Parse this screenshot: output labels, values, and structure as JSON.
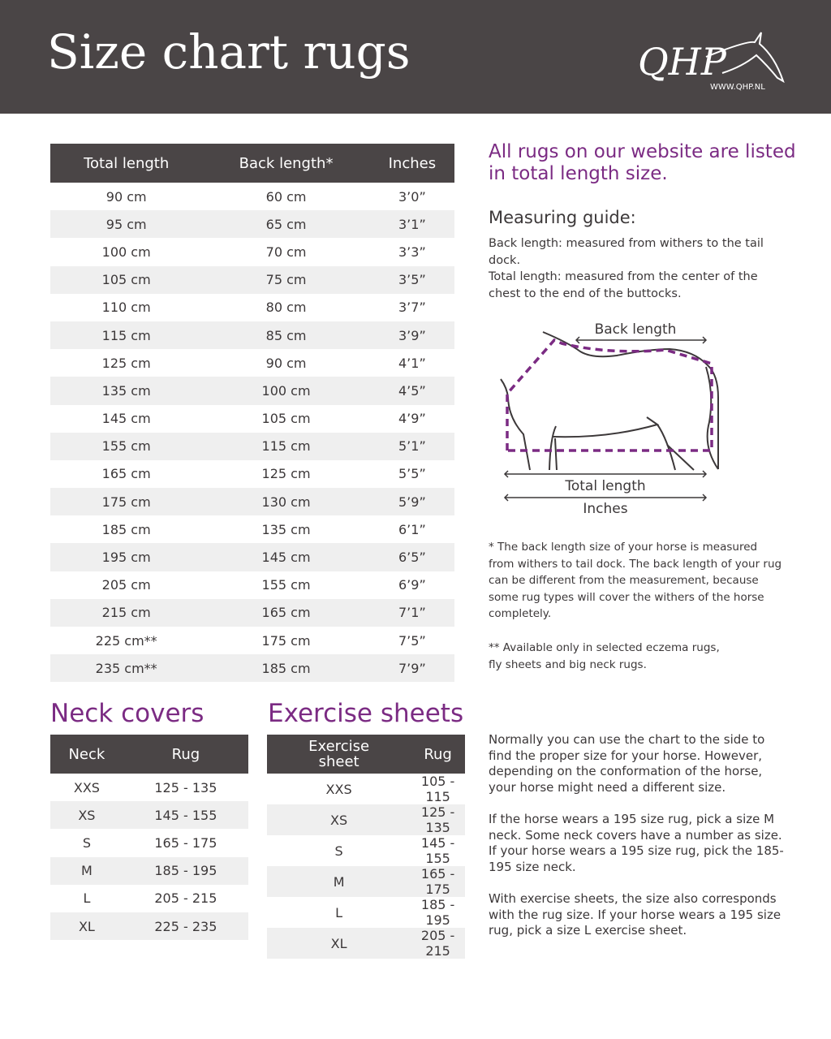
{
  "header": {
    "title": "Size chart rugs",
    "logo_text": "QHP",
    "logo_url": "WWW.QHP.NL"
  },
  "main_table": {
    "headers": [
      "Total length",
      "Back length*",
      "Inches"
    ],
    "rows": [
      [
        "90 cm",
        "60 cm",
        "3’0”"
      ],
      [
        "95 cm",
        "65 cm",
        "3’1”"
      ],
      [
        "100 cm",
        "70 cm",
        "3’3”"
      ],
      [
        "105 cm",
        "75 cm",
        "3’5”"
      ],
      [
        "110 cm",
        "80 cm",
        "3’7”"
      ],
      [
        "115 cm",
        "85 cm",
        "3’9”"
      ],
      [
        "125 cm",
        "90 cm",
        "4’1”"
      ],
      [
        "135 cm",
        "100 cm",
        "4’5”"
      ],
      [
        "145 cm",
        "105 cm",
        "4’9”"
      ],
      [
        "155 cm",
        "115 cm",
        "5’1”"
      ],
      [
        "165 cm",
        "125 cm",
        "5’5”"
      ],
      [
        "175 cm",
        "130 cm",
        "5’9”"
      ],
      [
        "185 cm",
        "135 cm",
        "6’1”"
      ],
      [
        "195 cm",
        "145 cm",
        "6’5”"
      ],
      [
        "205 cm",
        "155 cm",
        "6’9”"
      ],
      [
        "215 cm",
        "165 cm",
        "7’1”"
      ],
      [
        "225 cm**",
        "175 cm",
        "7’5”"
      ],
      [
        "235 cm**",
        "185 cm",
        "7’9”"
      ]
    ]
  },
  "neck": {
    "title": "Neck covers",
    "headers": [
      "Neck",
      "Rug"
    ],
    "rows": [
      [
        "XXS",
        "125 - 135"
      ],
      [
        "XS",
        "145 - 155"
      ],
      [
        "S",
        "165 - 175"
      ],
      [
        "M",
        "185 - 195"
      ],
      [
        "L",
        "205 - 215"
      ],
      [
        "XL",
        "225 - 235"
      ]
    ]
  },
  "exercise": {
    "title": "Exercise sheets",
    "headers": [
      "Exercise sheet",
      "Rug"
    ],
    "rows": [
      [
        "XXS",
        "105 - 115"
      ],
      [
        "XS",
        "125 - 135"
      ],
      [
        "S",
        "145 - 155"
      ],
      [
        "M",
        "165 - 175"
      ],
      [
        "L",
        "185 - 195"
      ],
      [
        "XL",
        "205 - 215"
      ]
    ]
  },
  "info": {
    "headline": "All rugs on our website are listed in total length size.",
    "guide_title": "Measuring guide:",
    "guide_text": "Back length: measured from withers to the tail dock.\nTotal length: measured from the center of the chest to the end of the buttocks.",
    "diagram": {
      "back_length": "Back length",
      "total_length": "Total length",
      "inches": "Inches"
    },
    "note1": "* The back length size of your horse is measured from withers to tail dock. The back length of your rug can be different from the measurement, because some rug types will cover the withers of the horse completely.",
    "note2": "** Available only in selected eczema rugs, fly sheets and big neck rugs.",
    "p1": "Normally you can use the chart to the side to find the proper size for your horse.  However, depending on the conformation of the horse, your horse might need a different size.",
    "p2": "If the horse wears a 195 size rug, pick a size M neck. Some neck covers have a number as size. If your horse wears a 195 size rug, pick the 185-195 size neck.",
    "p3": "With exercise sheets, the size also corresponds with the rug size. If your horse wears a 195 size rug, pick a size L exercise sheet."
  },
  "colors": {
    "header_bg": "#4a4546",
    "accent": "#7b2b83",
    "stripe": "#efefef"
  }
}
